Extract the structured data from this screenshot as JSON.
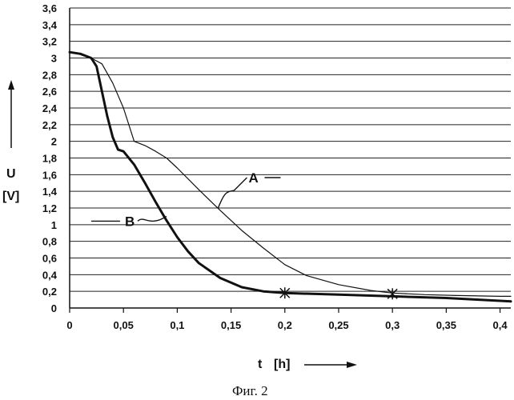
{
  "chart_data": {
    "type": "line",
    "xlabel": "t",
    "xunit": "[h]",
    "ylabel": "U",
    "yunit": "[V]",
    "caption": "Фиг. 2",
    "xlim": [
      0,
      0.41
    ],
    "ylim": [
      0,
      3.6
    ],
    "grid": "horizontal",
    "x_ticks": [
      "0",
      "0,05",
      "0,1",
      "0,15",
      "0,2",
      "0,25",
      "0,3",
      "0,35",
      "0,4"
    ],
    "x_tick_values": [
      0,
      0.05,
      0.1,
      0.15,
      0.2,
      0.25,
      0.3,
      0.35,
      0.4
    ],
    "y_ticks": [
      "0",
      "0,2",
      "0,4",
      "0,6",
      "0,8",
      "1",
      "1,2",
      "1,4",
      "1,6",
      "1,8",
      "2",
      "2,2",
      "2,4",
      "2,6",
      "2,8",
      "3",
      "3,2",
      "3,4",
      "3,6"
    ],
    "y_tick_values": [
      0,
      0.2,
      0.4,
      0.6,
      0.8,
      1.0,
      1.2,
      1.4,
      1.6,
      1.8,
      2.0,
      2.2,
      2.4,
      2.6,
      2.8,
      3.0,
      3.2,
      3.4,
      3.6
    ],
    "series": [
      {
        "name": "A",
        "style": "thin",
        "x": [
          0,
          0.01,
          0.02,
          0.03,
          0.04,
          0.05,
          0.06,
          0.07,
          0.08,
          0.09,
          0.1,
          0.12,
          0.14,
          0.16,
          0.18,
          0.2,
          0.22,
          0.25,
          0.28,
          0.3,
          0.33,
          0.36,
          0.4,
          0.41
        ],
        "y": [
          3.07,
          3.05,
          3.0,
          2.93,
          2.7,
          2.4,
          2.0,
          1.95,
          1.88,
          1.8,
          1.68,
          1.42,
          1.17,
          0.93,
          0.72,
          0.52,
          0.39,
          0.28,
          0.21,
          0.18,
          0.16,
          0.15,
          0.14,
          0.14
        ]
      },
      {
        "name": "B",
        "style": "thick",
        "x": [
          0,
          0.01,
          0.02,
          0.025,
          0.03,
          0.035,
          0.04,
          0.045,
          0.05,
          0.06,
          0.07,
          0.08,
          0.09,
          0.1,
          0.11,
          0.12,
          0.14,
          0.16,
          0.18,
          0.2,
          0.25,
          0.3,
          0.35,
          0.41
        ],
        "y": [
          3.07,
          3.05,
          3.0,
          2.9,
          2.6,
          2.3,
          2.05,
          1.9,
          1.88,
          1.72,
          1.5,
          1.27,
          1.05,
          0.85,
          0.68,
          0.54,
          0.36,
          0.25,
          0.2,
          0.18,
          0.16,
          0.14,
          0.12,
          0.08
        ]
      }
    ],
    "markers": [
      {
        "series": "B",
        "x": 0.2,
        "y": 0.18,
        "symbol": "star"
      },
      {
        "series": "A",
        "x": 0.3,
        "y": 0.17,
        "symbol": "star"
      }
    ],
    "series_label_anchors": [
      {
        "name": "A",
        "x": 0.138,
        "y": 1.2
      },
      {
        "name": "B",
        "x": 0.09,
        "y": 1.1
      }
    ]
  }
}
